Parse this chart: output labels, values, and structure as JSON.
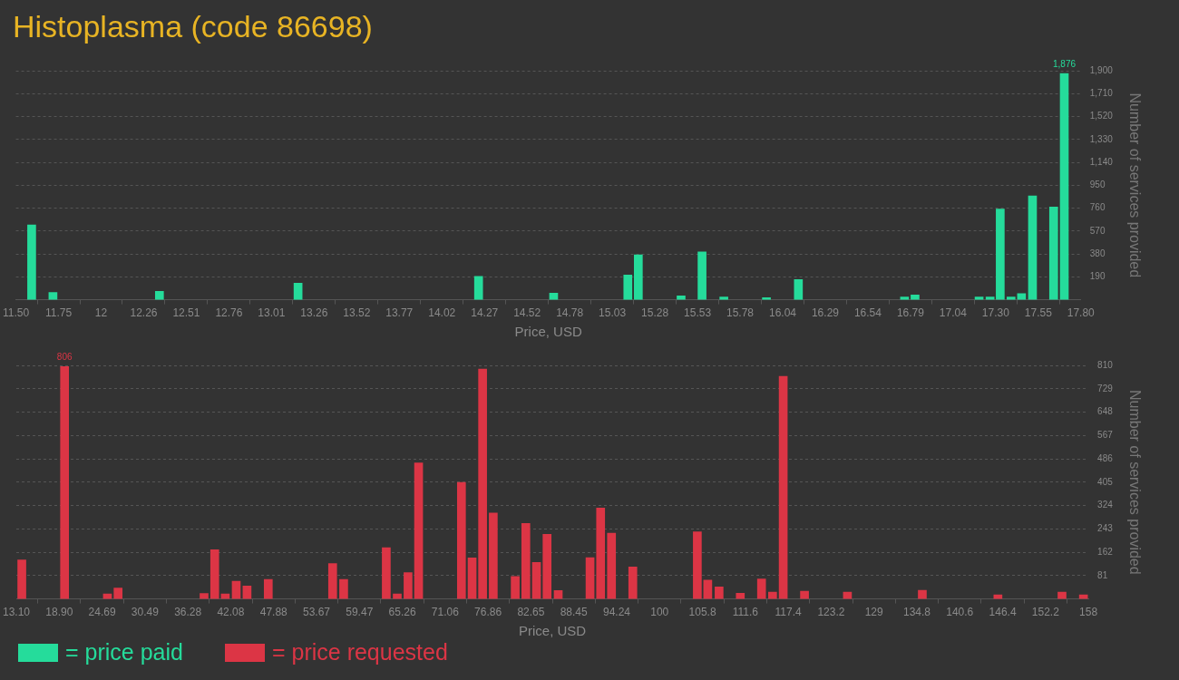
{
  "chart_data": [
    {
      "type": "bar",
      "title": "Histoplasma (code 86698)",
      "xlabel": "Price, USD",
      "ylabel": "Number of services provided",
      "x": [
        11.593,
        11.719,
        12.349,
        13.169,
        14.237,
        14.681,
        15.12,
        15.182,
        15.435,
        15.559,
        15.688,
        15.94,
        16.129,
        16.757,
        16.819,
        17.198,
        17.263,
        17.323,
        17.387,
        17.449,
        17.514,
        17.639,
        17.702
      ],
      "series": [
        {
          "name": "= price paid",
          "color": "#25dc9b",
          "values": [
            620,
            60,
            69,
            138,
            193,
            54,
            205,
            373,
            33,
            396,
            23,
            17,
            168,
            23,
            40,
            23,
            23,
            752,
            23,
            50,
            861,
            769,
            1876
          ],
          "value_labels": [
            null,
            null,
            null,
            null,
            null,
            null,
            null,
            null,
            null,
            null,
            null,
            null,
            null,
            null,
            null,
            null,
            null,
            null,
            null,
            null,
            null,
            null,
            "1,876"
          ]
        }
      ],
      "xlim": [
        11.5,
        17.8
      ],
      "xticks": [
        {
          "value": 11.5,
          "label": "11.50"
        },
        {
          "value": 11.752,
          "label": "11.75"
        },
        {
          "value": 12.004,
          "label": "12"
        },
        {
          "value": 12.256,
          "label": "12.26"
        },
        {
          "value": 12.508,
          "label": "12.51"
        },
        {
          "value": 12.76,
          "label": "12.76"
        },
        {
          "value": 13.012,
          "label": "13.01"
        },
        {
          "value": 13.264,
          "label": "13.26"
        },
        {
          "value": 13.516,
          "label": "13.52"
        },
        {
          "value": 13.768,
          "label": "13.77"
        },
        {
          "value": 14.02,
          "label": "14.02"
        },
        {
          "value": 14.272,
          "label": "14.27"
        },
        {
          "value": 14.524,
          "label": "14.52"
        },
        {
          "value": 14.776,
          "label": "14.78"
        },
        {
          "value": 15.028,
          "label": "15.03"
        },
        {
          "value": 15.28,
          "label": "15.28"
        },
        {
          "value": 15.532,
          "label": "15.53"
        },
        {
          "value": 15.784,
          "label": "15.78"
        },
        {
          "value": 16.036,
          "label": "16.04"
        },
        {
          "value": 16.288,
          "label": "16.29"
        },
        {
          "value": 16.54,
          "label": "16.54"
        },
        {
          "value": 16.792,
          "label": "16.79"
        },
        {
          "value": 17.044,
          "label": "17.04"
        },
        {
          "value": 17.296,
          "label": "17.30"
        },
        {
          "value": 17.548,
          "label": "17.55"
        },
        {
          "value": 17.8,
          "label": "17.80"
        }
      ],
      "ylim": [
        0,
        1900
      ],
      "yticks": [
        190,
        380,
        570,
        760,
        950,
        {
          "value": 1140,
          "label": "1,140"
        },
        {
          "value": 1330,
          "label": "1,330"
        },
        {
          "value": 1520,
          "label": "1,520"
        },
        {
          "value": 1710,
          "label": "1,710"
        },
        {
          "value": 1900,
          "label": "1,900"
        }
      ],
      "grid": "y",
      "legend": "bottom left"
    },
    {
      "type": "bar",
      "xlabel": "Price, USD",
      "ylabel": "Number of services provided",
      "x": [
        13.84,
        19.62,
        25.41,
        26.85,
        38.47,
        39.91,
        41.34,
        42.82,
        44.28,
        47.15,
        55.85,
        57.34,
        63.1,
        64.58,
        66.04,
        67.47,
        73.26,
        74.7,
        76.12,
        77.56,
        80.53,
        81.96,
        83.4,
        84.83,
        86.34,
        90.64,
        92.07,
        93.54,
        96.42,
        105.14,
        106.55,
        108.08,
        110.95,
        113.82,
        115.31,
        116.75,
        119.63,
        125.43,
        135.55,
        145.77,
        154.43,
        157.33
      ],
      "series": [
        {
          "name": "= price requested",
          "color": "#dc3545",
          "values": [
            135,
            806,
            17,
            38,
            19,
            171,
            17,
            61,
            45,
            68,
            123,
            68,
            178,
            17,
            91,
            472,
            404,
            142,
            797,
            298,
            78,
            262,
            127,
            224,
            29,
            143,
            315,
            228,
            111,
            233,
            65,
            42,
            20,
            69,
            24,
            772,
            27,
            24,
            30,
            14,
            24,
            14
          ],
          "value_labels": [
            null,
            "806",
            null,
            null,
            null,
            null,
            null,
            null,
            null,
            null,
            null,
            null,
            null,
            null,
            null,
            null,
            null,
            null,
            null,
            null,
            null,
            null,
            null,
            null,
            null,
            null,
            null,
            null,
            null,
            null,
            null,
            null,
            null,
            null,
            null,
            null,
            null,
            null,
            null,
            null,
            null,
            null
          ]
        }
      ],
      "xlim": [
        13.1,
        158
      ],
      "xticks": [
        {
          "value": 13.1,
          "label": "13.10"
        },
        {
          "value": 18.896,
          "label": "18.90"
        },
        {
          "value": 24.692,
          "label": "24.69"
        },
        {
          "value": 30.488,
          "label": "30.49"
        },
        {
          "value": 36.284,
          "label": "36.28"
        },
        {
          "value": 42.08,
          "label": "42.08"
        },
        {
          "value": 47.876,
          "label": "47.88"
        },
        {
          "value": 53.672,
          "label": "53.67"
        },
        {
          "value": 59.468,
          "label": "59.47"
        },
        {
          "value": 65.264,
          "label": "65.26"
        },
        {
          "value": 71.06,
          "label": "71.06"
        },
        {
          "value": 76.856,
          "label": "76.86"
        },
        {
          "value": 82.652,
          "label": "82.65"
        },
        {
          "value": 88.448,
          "label": "88.45"
        },
        {
          "value": 94.244,
          "label": "94.24"
        },
        {
          "value": 100.04,
          "label": "100"
        },
        {
          "value": 105.836,
          "label": "105.8"
        },
        {
          "value": 111.632,
          "label": "111.6"
        },
        {
          "value": 117.428,
          "label": "117.4"
        },
        {
          "value": 123.224,
          "label": "123.2"
        },
        {
          "value": 129.02,
          "label": "129"
        },
        {
          "value": 134.816,
          "label": "134.8"
        },
        {
          "value": 140.612,
          "label": "140.6"
        },
        {
          "value": 146.408,
          "label": "146.4"
        },
        {
          "value": 152.204,
          "label": "152.2"
        },
        {
          "value": 158,
          "label": "158"
        }
      ],
      "ylim": [
        0,
        810
      ],
      "yticks": [
        81,
        162,
        243,
        324,
        405,
        486,
        567,
        648,
        729,
        810
      ],
      "grid": "y",
      "legend": "bottom left"
    }
  ]
}
